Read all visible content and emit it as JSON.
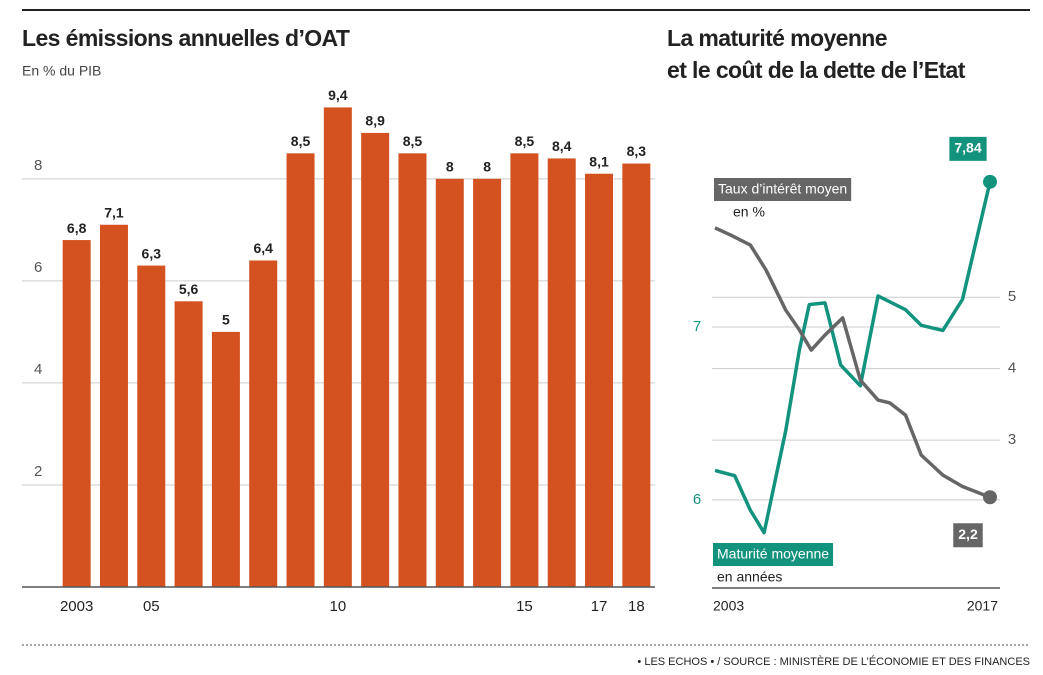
{
  "chart_data": [
    {
      "type": "bar",
      "title": "Les émissions annuelles d’OAT",
      "subtitle": "En % du PIB",
      "categories": [
        "2003",
        null,
        "05",
        null,
        null,
        null,
        null,
        "10",
        null,
        null,
        null,
        null,
        "15",
        null,
        "17",
        "18"
      ],
      "values": [
        6.8,
        7.1,
        6.3,
        5.6,
        5,
        6.4,
        8.5,
        9.4,
        8.9,
        8.5,
        8,
        8,
        8.5,
        8.4,
        8.1,
        8.3
      ],
      "value_labels": [
        "6,8",
        "7,1",
        "6,3",
        "5,6",
        "5",
        "6,4",
        "8,5",
        "9,4",
        "8,9",
        "8,5",
        "8",
        "8",
        "8,5",
        "8,4",
        "8,1",
        "8,3"
      ],
      "color": "#d4521f",
      "ylim": [
        0,
        9.8
      ],
      "yticks": [
        2,
        4,
        6,
        8
      ],
      "grid": true
    },
    {
      "type": "line",
      "title": [
        "La maturité moyenne",
        "et le coût de la dette de l’Etat"
      ],
      "xlim": [
        2003,
        2017
      ],
      "xticks": [
        2003,
        2017
      ],
      "ylim": [
        5.49,
        8.14
      ],
      "yticks": [
        6,
        7
      ],
      "y2lim": [
        0.93,
        7.34
      ],
      "y2ticks": [
        3,
        4,
        5
      ],
      "grid": true,
      "series": [
        {
          "name": "Maturité moyenne",
          "unit": "en années",
          "color": "#13937e",
          "axis": "y",
          "x": [
            2003.0,
            2004.0,
            2004.8,
            2005.5,
            2006.6,
            2007.3,
            2007.8,
            2008.6,
            2009.4,
            2010.4,
            2011.3,
            2012.7,
            2013.5,
            2014.6,
            2015.6,
            2017.0
          ],
          "values": [
            6.17,
            6.14,
            5.94,
            5.81,
            6.4,
            6.87,
            7.13,
            7.14,
            6.78,
            6.66,
            7.18,
            7.1,
            7.01,
            6.98,
            7.16,
            7.84
          ],
          "value_labels": [
            null,
            null,
            null,
            null,
            null,
            null,
            null,
            null,
            null,
            null,
            null,
            null,
            null,
            null,
            null,
            "7,84"
          ]
        },
        {
          "name": "Taux d’intérêt moyen",
          "unit": "en %",
          "color": "#666666",
          "axis": "y2",
          "x": [
            2003.0,
            2003.8,
            2004.8,
            2005.6,
            2006.6,
            2007.3,
            2007.9,
            2008.6,
            2009.5,
            2010.4,
            2011.3,
            2011.9,
            2012.7,
            2013.5,
            2014.6,
            2015.6,
            2017.0
          ],
          "values": [
            5.97,
            5.87,
            5.73,
            5.38,
            4.82,
            4.54,
            4.26,
            4.47,
            4.71,
            3.84,
            3.56,
            3.52,
            3.35,
            2.79,
            2.51,
            2.35,
            2.2
          ],
          "value_labels": [
            null,
            null,
            null,
            null,
            null,
            null,
            null,
            null,
            null,
            null,
            null,
            null,
            null,
            null,
            null,
            null,
            "2,2"
          ]
        }
      ]
    }
  ],
  "source": "• LES ECHOS • / SOURCE : MINISTÈRE DE L’ÉCONOMIE ET DES FINANCES"
}
